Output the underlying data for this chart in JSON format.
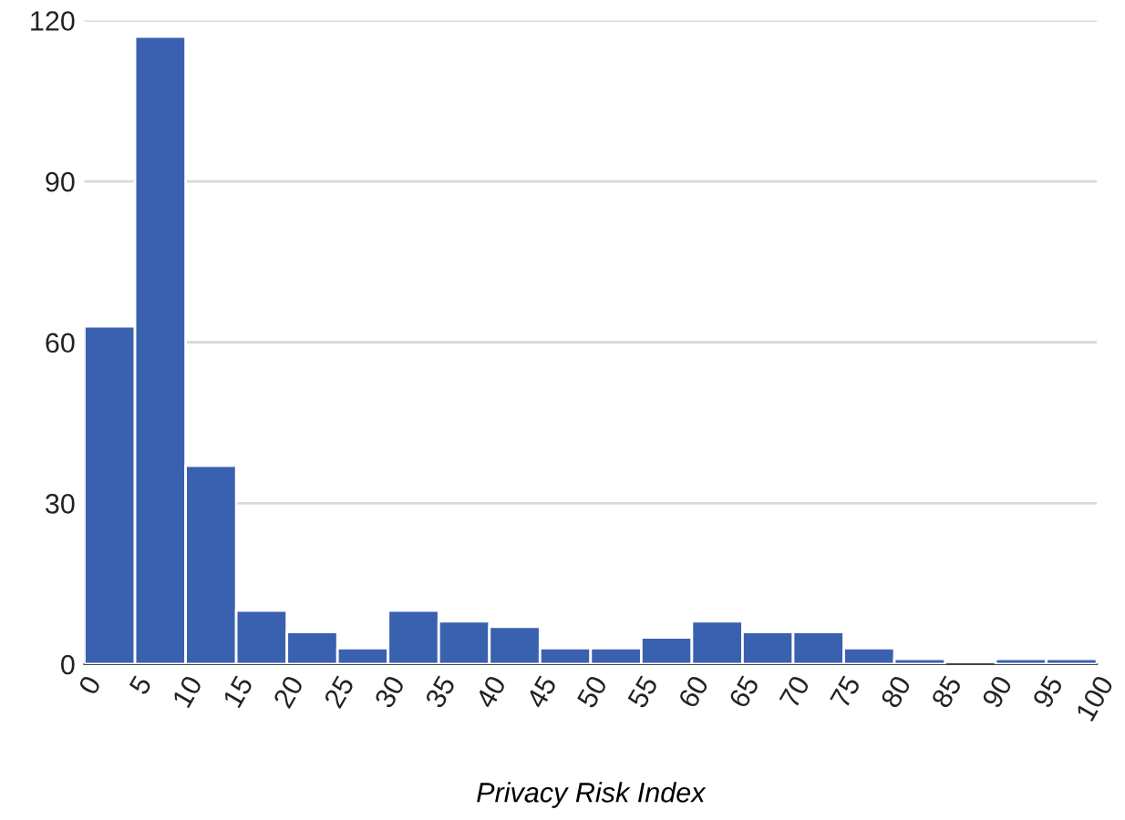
{
  "chart_data": {
    "type": "histogram",
    "xlabel": "Privacy Risk Index",
    "bins": [
      0,
      5,
      10,
      15,
      20,
      25,
      30,
      35,
      40,
      45,
      50,
      55,
      60,
      65,
      70,
      75,
      80,
      85,
      90,
      95,
      100
    ],
    "values": [
      63,
      117,
      37,
      10,
      6,
      3,
      10,
      8,
      7,
      3,
      3,
      5,
      8,
      6,
      6,
      3,
      1,
      0,
      1,
      1
    ],
    "color": "#3a60b0",
    "xlim": [
      0,
      100
    ],
    "xticks": [
      0,
      5,
      10,
      15,
      20,
      25,
      30,
      35,
      40,
      45,
      50,
      55,
      60,
      65,
      70,
      75,
      80,
      85,
      90,
      95,
      100
    ],
    "ylim": [
      0,
      120
    ],
    "yticks": [
      0,
      30,
      60,
      90,
      120
    ],
    "grid": "y"
  }
}
